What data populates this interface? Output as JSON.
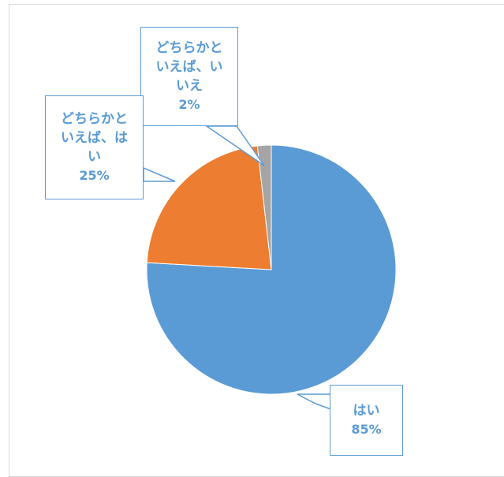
{
  "chart_data": {
    "type": "pie",
    "slices": [
      {
        "label": "はい",
        "value": 85,
        "value_label": "85%",
        "color": "#5b9bd5"
      },
      {
        "label": "どちらかといえば、はい",
        "value": 25,
        "value_label": "25%",
        "color": "#ed7d31"
      },
      {
        "label": "どちらかといえば、いいえ",
        "value": 2,
        "value_label": "2%",
        "color": "#a5a5a5"
      }
    ],
    "start_angle_deg": 0,
    "direction": "clockwise",
    "legend": "none",
    "data_labels": "callouts"
  },
  "labels_display": {
    "hai": "はい",
    "dochira_hai": "どちらかと\nいえば、は\nい",
    "dochira_iie": "どちらかと\nいえば、い\nいえ"
  }
}
